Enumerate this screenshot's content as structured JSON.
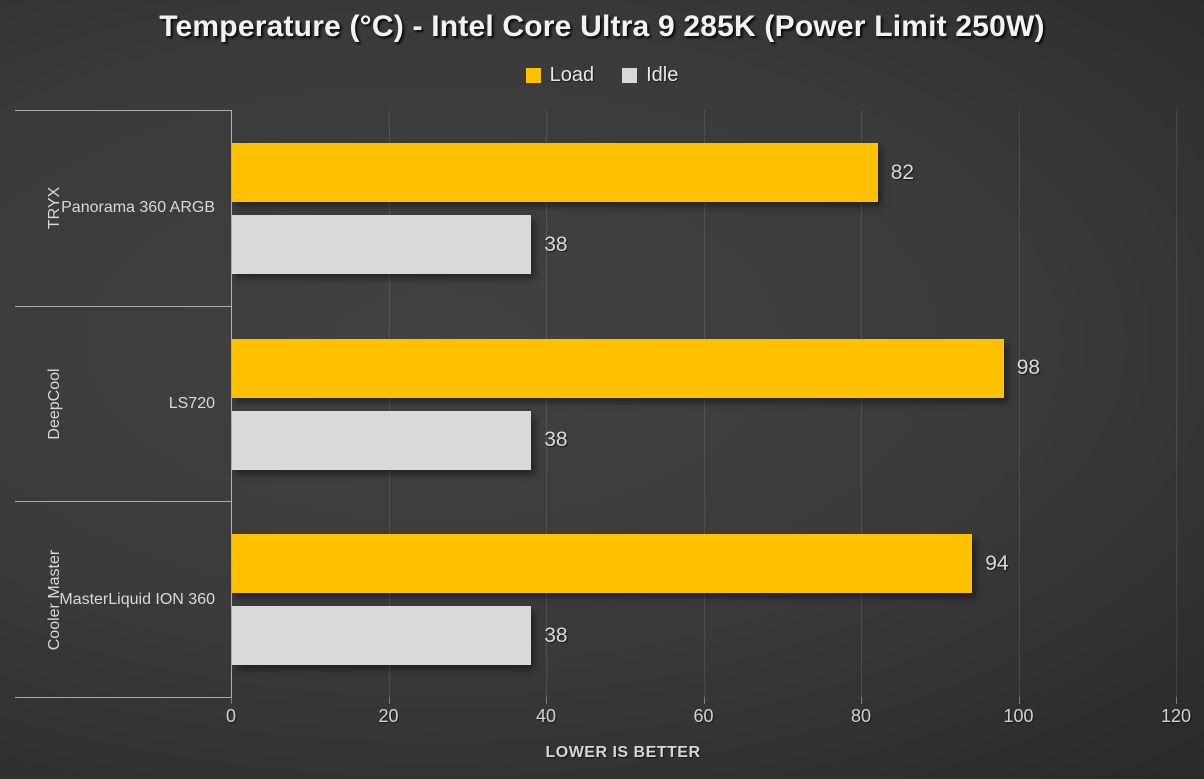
{
  "title": "Temperature (°C) - Intel Core Ultra 9 285K (Power Limit 250W)",
  "xlabel": "LOWER IS BETTER",
  "legend": {
    "load_label": "Load",
    "idle_label": "Idle"
  },
  "colors": {
    "load": "#FFC000",
    "idle": "#D9D9D9",
    "value_label": "#D9D9D9",
    "axis_line": "#C8C8C8"
  },
  "chart_data": {
    "type": "bar",
    "orientation": "horizontal",
    "title": "Temperature (°C) - Intel Core Ultra 9 285K (Power Limit 250W)",
    "xlabel": "LOWER IS BETTER",
    "ylabel": "",
    "xlim": [
      0,
      120
    ],
    "xticks": [
      0,
      20,
      40,
      60,
      80,
      100,
      120
    ],
    "grid": true,
    "legend_position": "top",
    "categories": [
      "Panorama 360 ARGB",
      "LS720",
      "MasterLiquid ION 360"
    ],
    "groups": [
      {
        "brand": "TRYX",
        "model": "Panorama 360 ARGB"
      },
      {
        "brand": "DeepCool",
        "model": "LS720"
      },
      {
        "brand": "Cooler Master",
        "model": "MasterLiquid ION 360"
      }
    ],
    "series": [
      {
        "name": "Load",
        "color": "#FFC000",
        "values": [
          82,
          98,
          94
        ]
      },
      {
        "name": "Idle",
        "color": "#D9D9D9",
        "values": [
          38,
          38,
          38
        ]
      }
    ]
  }
}
